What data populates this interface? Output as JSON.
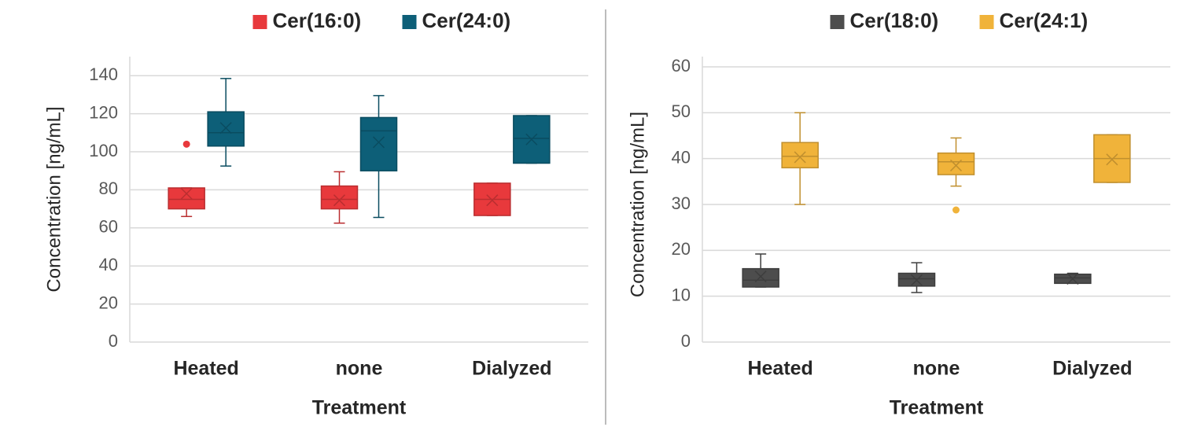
{
  "chart_data": [
    {
      "type": "box",
      "y_label": "Concentration [ng/mL]",
      "x_label": "Treatment",
      "categories": [
        "Heated",
        "none",
        "Dialyzed"
      ],
      "ylim": [
        0,
        150
      ],
      "yticks": [
        0,
        20,
        40,
        60,
        80,
        100,
        120,
        140
      ],
      "grid": true,
      "legend": "top",
      "series": [
        {
          "name": "Cer(16:0)",
          "color": "#e8393c",
          "min": [
            66,
            62.5,
            66.5
          ],
          "q1": [
            70,
            70,
            66.5
          ],
          "median": [
            75,
            75,
            75
          ],
          "q3": [
            81,
            82,
            83.5
          ],
          "max": [
            81,
            89.5,
            83.5
          ],
          "mean": [
            78,
            74.5,
            74.5
          ],
          "outliers": [
            [
              104
            ],
            [],
            []
          ]
        },
        {
          "name": "Cer(24:0)",
          "color": "#0d5f78",
          "min": [
            92.5,
            65.5,
            94
          ],
          "q1": [
            103,
            90,
            94
          ],
          "median": [
            110,
            111,
            107
          ],
          "q3": [
            121,
            118,
            119
          ],
          "max": [
            138.5,
            129.5,
            119
          ],
          "mean": [
            112.5,
            105,
            106.5
          ],
          "outliers": [
            [],
            [],
            []
          ]
        }
      ]
    },
    {
      "type": "box",
      "y_label": "Concentration [ng/mL]",
      "x_label": "Treatment",
      "categories": [
        "Heated",
        "none",
        "Dialyzed"
      ],
      "ylim": [
        0,
        60
      ],
      "yticks": [
        0,
        10,
        20,
        30,
        40,
        50,
        60
      ],
      "grid": true,
      "legend": "top",
      "series": [
        {
          "name": "Cer(18:0)",
          "color": "#4d4d4d",
          "min": [
            12,
            10.8,
            12.8
          ],
          "q1": [
            12,
            12.2,
            12.8
          ],
          "median": [
            13.5,
            13.8,
            14
          ],
          "q3": [
            16,
            15,
            14.8
          ],
          "max": [
            19.2,
            17.3,
            15
          ],
          "mean": [
            14.3,
            13.5,
            13.8
          ],
          "outliers": [
            [],
            [],
            []
          ]
        },
        {
          "name": "Cer(24:1)",
          "color": "#f0b33a",
          "min": [
            30,
            34,
            34.8
          ],
          "q1": [
            38,
            36.5,
            34.8
          ],
          "median": [
            40.5,
            39.3,
            40
          ],
          "q3": [
            43.5,
            41.2,
            45.2
          ],
          "max": [
            50,
            44.5,
            45.2
          ],
          "mean": [
            40.3,
            38.5,
            39.8
          ],
          "outliers": [
            [],
            [
              28.8
            ],
            []
          ]
        }
      ]
    }
  ]
}
